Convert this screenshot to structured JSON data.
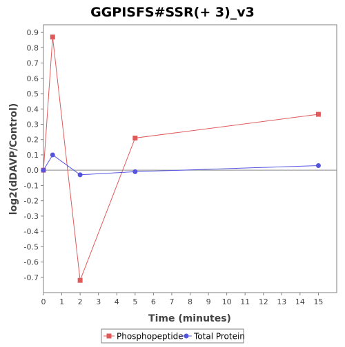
{
  "chart_data": {
    "type": "line",
    "title": "GGPISFS#SSR(+ 3)_v3",
    "xlabel": "Time (minutes)",
    "ylabel": "log2(dDAVP/Control)",
    "xlim": [
      0,
      16
    ],
    "ylim": [
      -0.8,
      0.95
    ],
    "x_ticks": [
      0,
      1,
      2,
      3,
      4,
      5,
      6,
      7,
      8,
      9,
      10,
      11,
      12,
      13,
      14,
      15
    ],
    "y_ticks": [
      -0.7,
      -0.6,
      -0.5,
      -0.4,
      -0.3,
      -0.2,
      -0.1,
      0.0,
      0.1,
      0.2,
      0.3,
      0.4,
      0.5,
      0.6,
      0.7,
      0.8,
      0.9
    ],
    "x_tick_labels": [
      "0",
      "1",
      "2",
      "3",
      "4",
      "5",
      "6",
      "7",
      "8",
      "9",
      "10",
      "11",
      "12",
      "13",
      "14",
      "15"
    ],
    "y_tick_labels": [
      "-0.7",
      "-0.6",
      "-0.5",
      "-0.4",
      "-0.3",
      "-0.2",
      "-0.1",
      "0.0",
      "0.1",
      "0.2",
      "0.3",
      "0.4",
      "0.5",
      "0.6",
      "0.7",
      "0.8",
      "0.9"
    ],
    "grid": false,
    "legend_position": "bottom",
    "series": [
      {
        "name": "Phosphopeptide",
        "color": "#e05a5a",
        "marker": "square",
        "x": [
          0,
          0.5,
          2,
          5,
          15
        ],
        "y": [
          0.0,
          0.87,
          -0.72,
          0.21,
          0.365
        ]
      },
      {
        "name": "Total Protein",
        "color": "#5555e0",
        "marker": "circle",
        "x": [
          0,
          0.5,
          2,
          5,
          15
        ],
        "y": [
          0.0,
          0.1,
          -0.03,
          -0.01,
          0.03
        ]
      }
    ]
  }
}
